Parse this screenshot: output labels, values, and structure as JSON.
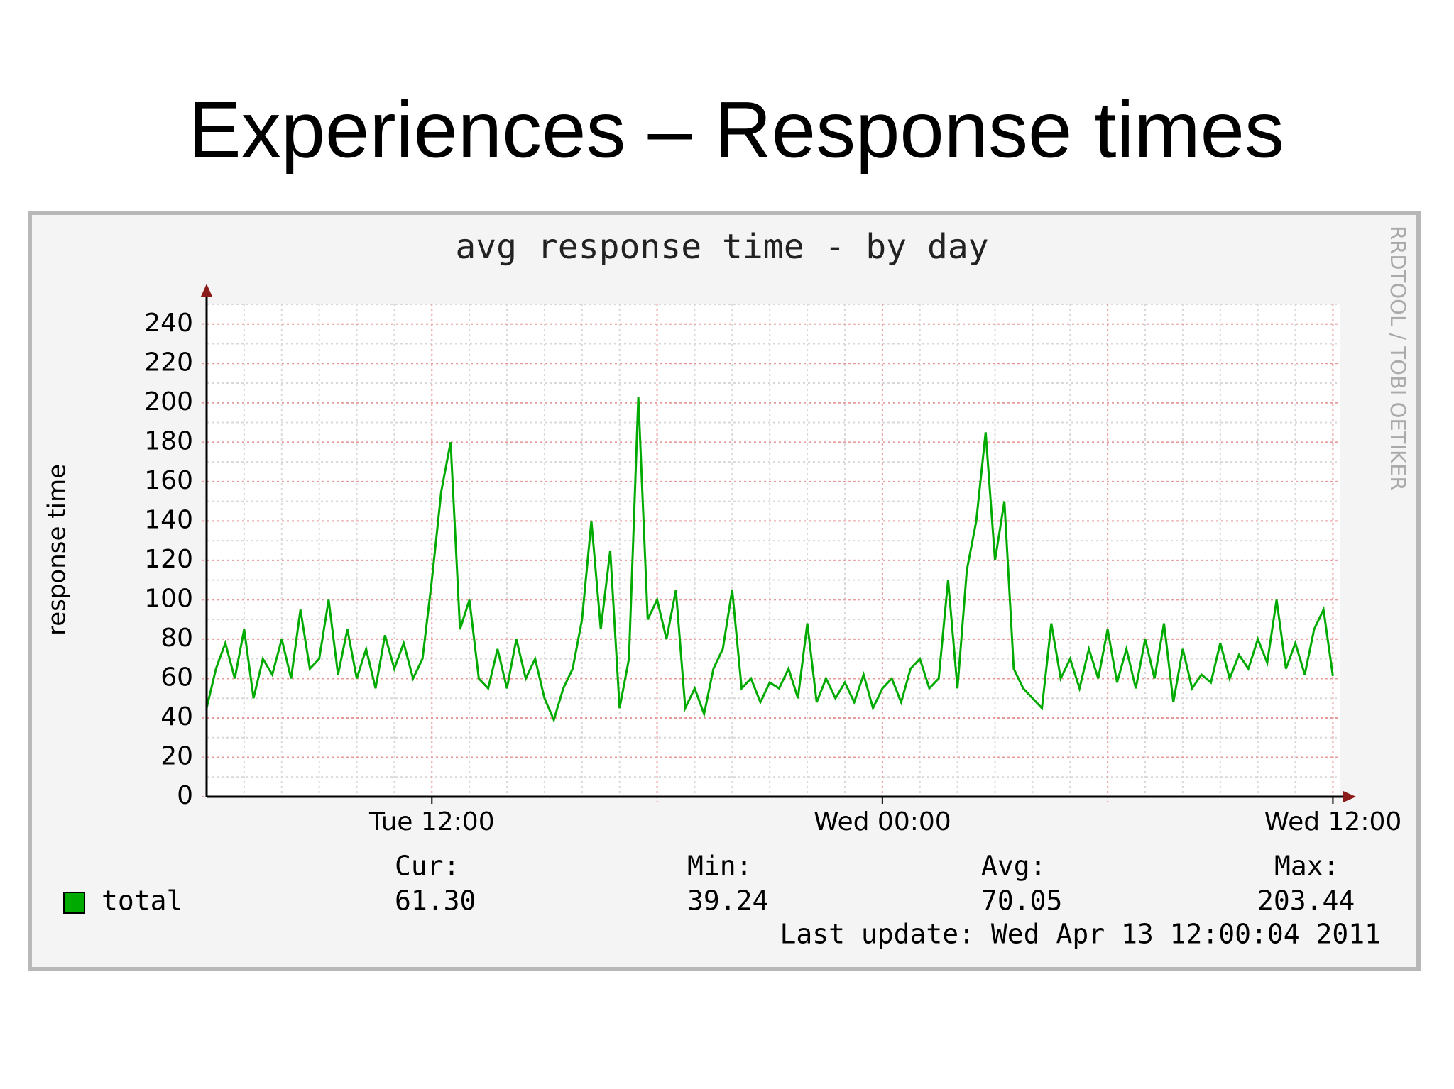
{
  "slide_title": "Experiences – Response times",
  "chart_data": {
    "type": "line",
    "title": "avg response time - by day",
    "y_label": "response time",
    "watermark": "RRDTOOL / TOBI OETIKER",
    "x": [
      6,
      6.25,
      6.5,
      6.75,
      7,
      7.25,
      7.5,
      7.75,
      8,
      8.25,
      8.5,
      8.75,
      9,
      9.25,
      9.5,
      9.75,
      10,
      10.25,
      10.5,
      10.75,
      11,
      11.25,
      11.5,
      11.75,
      12,
      12.25,
      12.5,
      12.75,
      13,
      13.25,
      13.5,
      13.75,
      14,
      14.25,
      14.5,
      14.75,
      15,
      15.25,
      15.5,
      15.75,
      16,
      16.25,
      16.5,
      16.75,
      17,
      17.25,
      17.5,
      17.75,
      18,
      18.25,
      18.5,
      18.75,
      19,
      19.25,
      19.5,
      19.75,
      20,
      20.25,
      20.5,
      20.75,
      21,
      21.25,
      21.5,
      21.75,
      22,
      22.25,
      22.5,
      22.75,
      23,
      23.25,
      23.5,
      23.75,
      24,
      24.25,
      24.5,
      24.75,
      25,
      25.25,
      25.5,
      25.75,
      26,
      26.25,
      26.5,
      26.75,
      27,
      27.25,
      27.5,
      27.75,
      28,
      28.25,
      28.5,
      28.75,
      29,
      29.25,
      29.5,
      29.75,
      30,
      30.25,
      30.5,
      30.75,
      31,
      31.25,
      31.5,
      31.75,
      32,
      32.25,
      32.5,
      32.75,
      33,
      33.25,
      33.5,
      33.75,
      34,
      34.25,
      34.5,
      34.75,
      35,
      35.25,
      35.5,
      35.75,
      36
    ],
    "series": [
      {
        "name": "total",
        "color": "#00aa00",
        "values": [
          45,
          65,
          78,
          60,
          85,
          50,
          70,
          62,
          80,
          60,
          95,
          65,
          70,
          100,
          62,
          85,
          60,
          75,
          55,
          82,
          65,
          78,
          60,
          70,
          110,
          155,
          180,
          85,
          100,
          60,
          55,
          75,
          55,
          80,
          60,
          70,
          50,
          39,
          55,
          65,
          90,
          140,
          85,
          125,
          45,
          70,
          203,
          90,
          100,
          80,
          105,
          45,
          55,
          42,
          65,
          75,
          105,
          55,
          60,
          48,
          58,
          55,
          65,
          50,
          88,
          48,
          60,
          50,
          58,
          48,
          62,
          45,
          55,
          60,
          48,
          65,
          70,
          55,
          60,
          110,
          55,
          115,
          140,
          185,
          120,
          150,
          65,
          55,
          50,
          45,
          88,
          60,
          70,
          55,
          75,
          60,
          85,
          58,
          75,
          55,
          80,
          60,
          88,
          48,
          75,
          55,
          62,
          58,
          78,
          60,
          72,
          65,
          80,
          68,
          100,
          65,
          78,
          62,
          85,
          95,
          61.3
        ]
      }
    ],
    "xlim": [
      6,
      36.2
    ],
    "xticks": [
      {
        "value": 12,
        "label": "Tue 12:00"
      },
      {
        "value": 24,
        "label": "Wed 00:00"
      },
      {
        "value": 36,
        "label": "Wed 12:00"
      }
    ],
    "xticks_major_grid": [
      12,
      18,
      24,
      30,
      36
    ],
    "xticks_minor": [
      7,
      8,
      9,
      10,
      11,
      13,
      14,
      15,
      16,
      17,
      19,
      20,
      21,
      22,
      23,
      25,
      26,
      27,
      28,
      29,
      31,
      32,
      33,
      34,
      35
    ],
    "ylim": [
      0,
      250
    ],
    "yticks": [
      0,
      20,
      40,
      60,
      80,
      100,
      120,
      140,
      160,
      180,
      200,
      220,
      240
    ],
    "yticks_minor": [
      10,
      30,
      50,
      70,
      90,
      110,
      130,
      150,
      170,
      190,
      210,
      230,
      250
    ],
    "grid": true,
    "stats": [
      {
        "label": "Cur:",
        "value": "61.30"
      },
      {
        "label": "Min:",
        "value": "39.24"
      },
      {
        "label": "Avg:",
        "value": "70.05"
      },
      {
        "label": "Max:",
        "value": "203.44"
      }
    ],
    "last_update": "Last update: Wed Apr 13 12:00:04 2011"
  }
}
